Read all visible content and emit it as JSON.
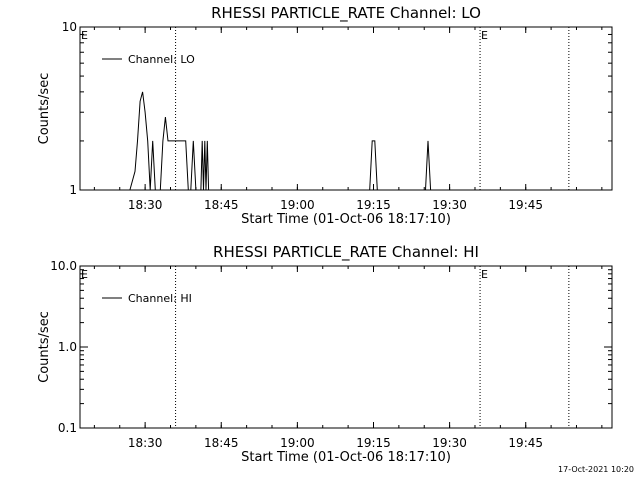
{
  "footer": {
    "timestamp": "17-Oct-2021 10:20"
  },
  "chart_data": [
    {
      "type": "line",
      "title": "RHESSI PARTICLE_RATE Channel: LO",
      "xlabel": "Start Time (01-Oct-06 18:17:10)",
      "ylabel": "Counts/sec",
      "yscale": "log",
      "xlim": [
        "18:17:10",
        "20:02:00"
      ],
      "ylim": [
        1,
        10
      ],
      "x_ticks": [
        "18:30",
        "18:45",
        "19:00",
        "19:15",
        "19:30",
        "19:45"
      ],
      "y_ticks": [
        "1",
        "10"
      ],
      "legend": {
        "position": "top-left",
        "entries": [
          "Channel: LO"
        ]
      },
      "markers": [
        {
          "label": "E",
          "time": "18:17:10",
          "dotted": false
        },
        {
          "label": "",
          "time": "18:36:00",
          "dotted": true
        },
        {
          "label": "E",
          "time": "19:36:00",
          "dotted": true
        },
        {
          "label": "",
          "time": "19:53:30",
          "dotted": true
        }
      ],
      "series": [
        {
          "name": "Channel: LO",
          "points": [
            [
              "18:27:00",
              1
            ],
            [
              "18:28:00",
              1.3
            ],
            [
              "18:28:30",
              2
            ],
            [
              "18:29:00",
              3.5
            ],
            [
              "18:29:30",
              4
            ],
            [
              "18:30:00",
              3
            ],
            [
              "18:30:30",
              2
            ],
            [
              "18:31:00",
              1
            ],
            [
              "18:31:30",
              2
            ],
            [
              "18:32:00",
              1
            ],
            [
              "18:33:00",
              1
            ],
            [
              "18:33:30",
              2
            ],
            [
              "18:34:00",
              2.8
            ],
            [
              "18:34:30",
              2
            ],
            [
              "18:37:30",
              2
            ],
            [
              "18:38:00",
              2
            ],
            [
              "18:38:30",
              1
            ],
            [
              "18:39:00",
              1
            ],
            [
              "18:39:30",
              2
            ],
            [
              "18:40:00",
              1
            ],
            [
              "18:41:00",
              1
            ],
            [
              "18:41:15",
              2
            ],
            [
              "18:41:30",
              1
            ],
            [
              "18:41:45",
              2
            ],
            [
              "18:42:00",
              1
            ],
            [
              "18:42:15",
              2
            ],
            [
              "18:42:30",
              1
            ],
            [
              "19:14:15",
              1
            ],
            [
              "19:14:45",
              2
            ],
            [
              "19:15:15",
              2
            ],
            [
              "19:15:45",
              1
            ],
            [
              "19:25:15",
              1
            ],
            [
              "19:25:45",
              2
            ],
            [
              "19:26:15",
              1
            ]
          ]
        }
      ]
    },
    {
      "type": "line",
      "title": "RHESSI PARTICLE_RATE Channel: HI",
      "xlabel": "Start Time (01-Oct-06 18:17:10)",
      "ylabel": "Counts/sec",
      "yscale": "log",
      "xlim": [
        "18:17:10",
        "20:02:00"
      ],
      "ylim": [
        0.1,
        10
      ],
      "x_ticks": [
        "18:30",
        "18:45",
        "19:00",
        "19:15",
        "19:30",
        "19:45"
      ],
      "y_ticks": [
        "0.1",
        "1.0",
        "10.0"
      ],
      "legend": {
        "position": "top-left",
        "entries": [
          "Channel: HI"
        ]
      },
      "markers": [
        {
          "label": "E",
          "time": "18:17:10",
          "dotted": false
        },
        {
          "label": "",
          "time": "18:36:00",
          "dotted": true
        },
        {
          "label": "E",
          "time": "19:36:00",
          "dotted": true
        },
        {
          "label": "",
          "time": "19:53:30",
          "dotted": true
        }
      ],
      "series": [
        {
          "name": "Channel: HI",
          "points": []
        }
      ]
    }
  ]
}
